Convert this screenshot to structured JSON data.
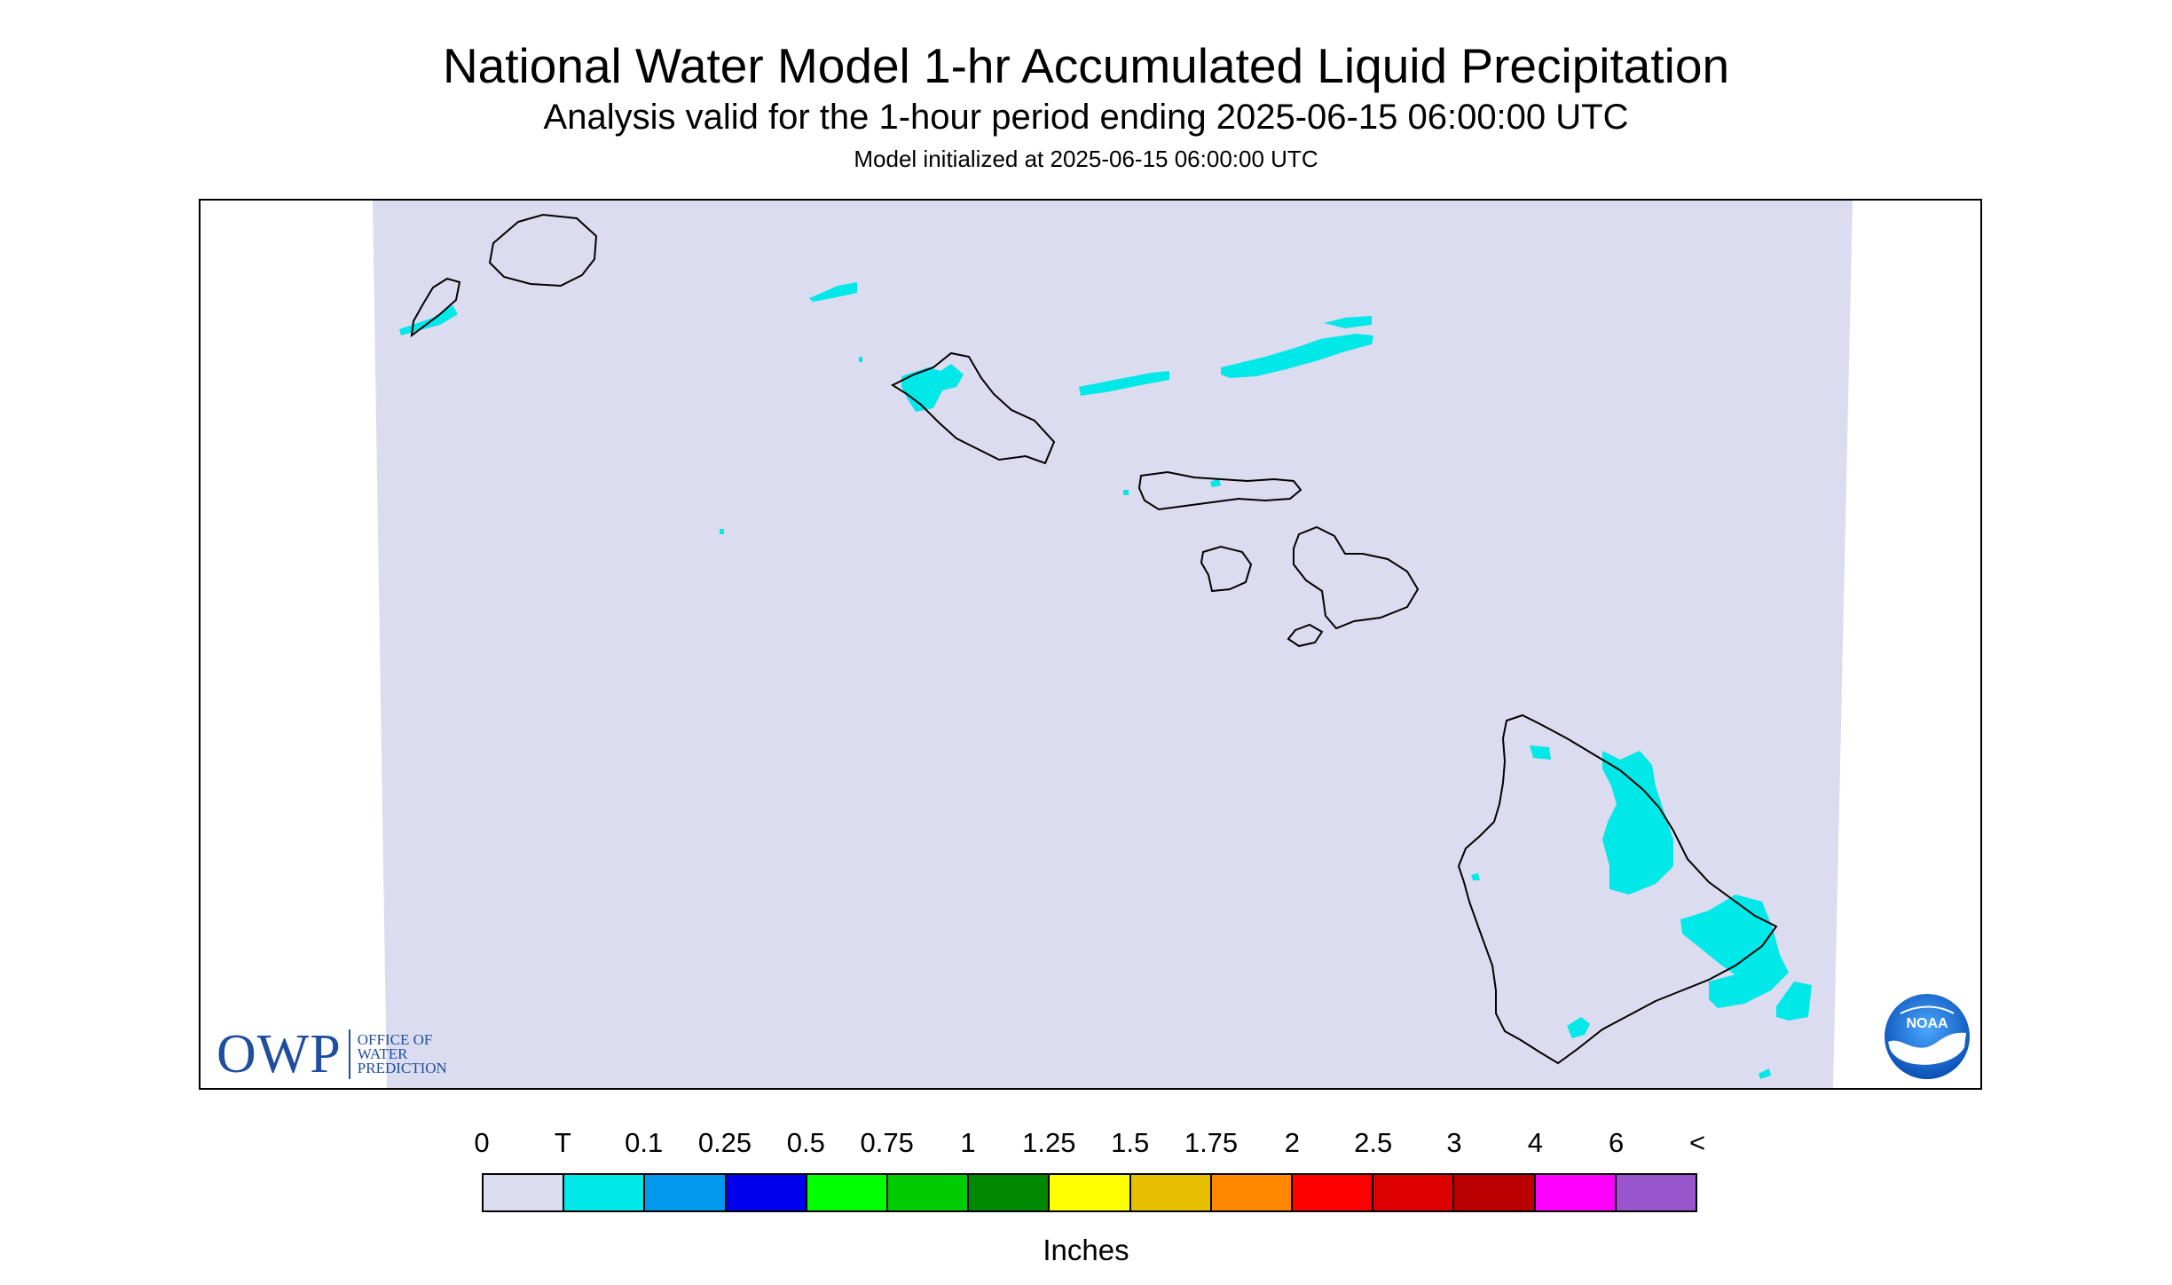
{
  "title": "National Water Model 1-hr Accumulated Liquid Precipitation",
  "subtitle": "Analysis valid for the 1-hour period ending 2025-06-15 06:00:00 UTC",
  "init_line": "Model initialized at 2025-06-15 06:00:00 UTC",
  "colors": {
    "no_precip": "#dcdcf0",
    "trace": "#00e8e8",
    "coastline": "#000000"
  },
  "logos": {
    "owp_big": "OWP",
    "owp_lines": [
      "OFFICE OF",
      "WATER",
      "PREDICTION"
    ],
    "noaa": "NOAA"
  },
  "legend": {
    "labels": [
      "0",
      "T",
      "0.1",
      "0.25",
      "0.5",
      "0.75",
      "1",
      "1.25",
      "1.5",
      "1.75",
      "2",
      "2.5",
      "3",
      "4",
      "6",
      "<"
    ],
    "colors": [
      "#dcdcf0",
      "#00e8e8",
      "#0099ee",
      "#0000ee",
      "#00ff00",
      "#00cc00",
      "#008800",
      "#ffff00",
      "#e6c000",
      "#ff8800",
      "#ff0000",
      "#dd0000",
      "#bb0000",
      "#ff00ff",
      "#9955cc"
    ],
    "units": "Inches"
  }
}
